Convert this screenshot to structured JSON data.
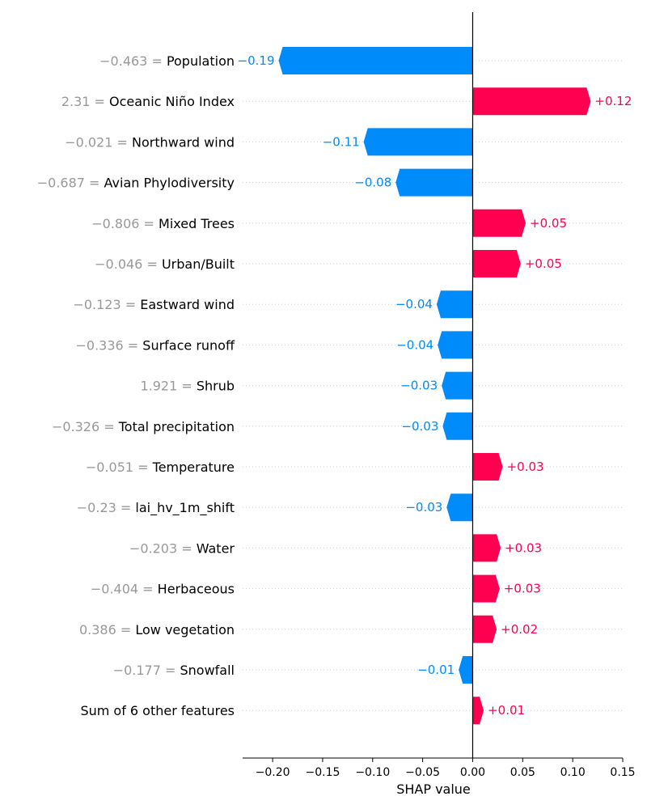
{
  "chart_data": {
    "type": "bar",
    "orientation": "horizontal",
    "xlabel": "SHAP value",
    "xlim": [
      -0.23,
      0.15
    ],
    "xticks": [
      -0.2,
      -0.15,
      -0.1,
      -0.05,
      0.0,
      0.05,
      0.1,
      0.15
    ],
    "xtick_labels": [
      "−0.20",
      "−0.15",
      "−0.10",
      "−0.05",
      "0.00",
      "0.05",
      "0.10",
      "0.15"
    ],
    "colors": {
      "positive": "#ff0051",
      "negative": "#008bfb",
      "feature_value": "#999999"
    },
    "features": [
      {
        "feature_value": "−0.463",
        "name": "Population",
        "value": -0.194,
        "label": "−0.19"
      },
      {
        "feature_value": "2.31",
        "name": "Oceanic Niño Index",
        "value": 0.118,
        "label": "+0.12"
      },
      {
        "feature_value": "−0.021",
        "name": "Northward wind",
        "value": -0.109,
        "label": "−0.11"
      },
      {
        "feature_value": "−0.687",
        "name": "Avian Phylodiversity",
        "value": -0.077,
        "label": "−0.08"
      },
      {
        "feature_value": "−0.806",
        "name": "Mixed Trees",
        "value": 0.053,
        "label": "+0.05"
      },
      {
        "feature_value": "−0.046",
        "name": "Urban/Built",
        "value": 0.048,
        "label": "+0.05"
      },
      {
        "feature_value": "−0.123",
        "name": "Eastward wind",
        "value": -0.036,
        "label": "−0.04"
      },
      {
        "feature_value": "−0.336",
        "name": "Surface runoff",
        "value": -0.035,
        "label": "−0.04"
      },
      {
        "feature_value": "1.921",
        "name": "Shrub",
        "value": -0.031,
        "label": "−0.03"
      },
      {
        "feature_value": "−0.326",
        "name": "Total precipitation",
        "value": -0.03,
        "label": "−0.03"
      },
      {
        "feature_value": "−0.051",
        "name": "Temperature",
        "value": 0.03,
        "label": "+0.03"
      },
      {
        "feature_value": "−0.23",
        "name": "lai_hv_1m_shift",
        "value": -0.026,
        "label": "−0.03"
      },
      {
        "feature_value": "−0.203",
        "name": "Water",
        "value": 0.028,
        "label": "+0.03"
      },
      {
        "feature_value": "−0.404",
        "name": "Herbaceous",
        "value": 0.027,
        "label": "+0.03"
      },
      {
        "feature_value": "0.386",
        "name": "Low vegetation",
        "value": 0.024,
        "label": "+0.02"
      },
      {
        "feature_value": "−0.177",
        "name": "Snowfall",
        "value": -0.014,
        "label": "−0.01"
      },
      {
        "feature_value": "",
        "name": "Sum of 6 other features",
        "value": 0.011,
        "label": "+0.01"
      }
    ]
  }
}
